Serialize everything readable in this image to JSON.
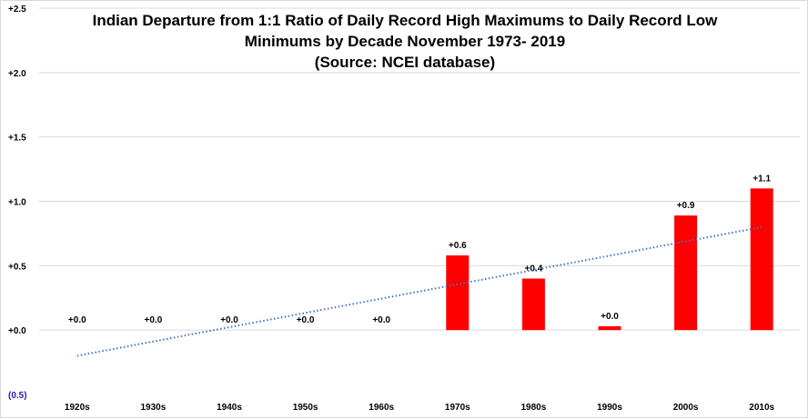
{
  "chart_data": {
    "type": "bar",
    "title_lines": [
      "Indian Departure from 1:1 Ratio of Daily Record High Maximums to Daily Record Low",
      "Minimums by Decade November 1973- 2019",
      "(Source: NCEI database)"
    ],
    "categories": [
      "1920s",
      "1930s",
      "1940s",
      "1950s",
      "1960s",
      "1970s",
      "1980s",
      "1990s",
      "2000s",
      "2010s"
    ],
    "values": [
      0.0,
      0.0,
      0.0,
      0.0,
      0.0,
      0.58,
      0.4,
      0.03,
      0.89,
      1.1
    ],
    "data_labels": [
      "+0.0",
      "+0.0",
      "+0.0",
      "+0.0",
      "+0.0",
      "+0.6",
      "+0.4",
      "+0.0",
      "+0.9",
      "+1.1"
    ],
    "ylim": [
      -0.5,
      2.5
    ],
    "yticks": [
      {
        "value": 2.5,
        "label": "+2.5"
      },
      {
        "value": 2.0,
        "label": "+2.0"
      },
      {
        "value": 1.5,
        "label": "+1.5"
      },
      {
        "value": 1.0,
        "label": "+1.0"
      },
      {
        "value": 0.5,
        "label": "+0.5"
      },
      {
        "value": 0.0,
        "label": "+0.0"
      },
      {
        "value": -0.5,
        "label": "(0.5)"
      }
    ],
    "trendline": {
      "type": "linear",
      "start": -0.2,
      "end": 0.8,
      "color": "#4472c4"
    },
    "bar_color": "#ff0000",
    "grid": true,
    "legend": "none"
  }
}
